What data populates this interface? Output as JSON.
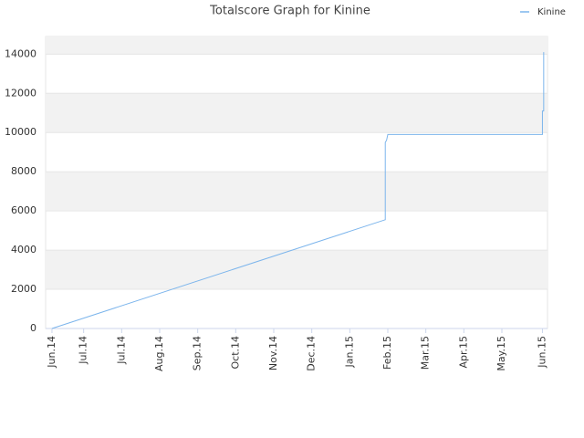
{
  "chart_data": {
    "type": "line",
    "title": "Totalscore Graph for Kinine",
    "x": [
      5,
      268,
      268,
      269,
      270,
      392,
      392,
      393,
      393
    ],
    "series": [
      {
        "name": "Kinine",
        "color": "#7cb5ec",
        "values": [
          0,
          5550,
          9500,
          9600,
          9900,
          9900,
          11100,
          11100,
          14100
        ]
      }
    ],
    "xlim": [
      0,
      396
    ],
    "xticks": [
      {
        "value": 5,
        "label": "Jun.14"
      },
      {
        "value": 30,
        "label": "Jul.14"
      },
      {
        "value": 60,
        "label": "Jul.14"
      },
      {
        "value": 90,
        "label": "Aug.14"
      },
      {
        "value": 120,
        "label": "Sep.14"
      },
      {
        "value": 150,
        "label": "Oct.14"
      },
      {
        "value": 180,
        "label": "Nov.14"
      },
      {
        "value": 210,
        "label": "Dec.14"
      },
      {
        "value": 240,
        "label": "Jan.15"
      },
      {
        "value": 270,
        "label": "Feb.15"
      },
      {
        "value": 300,
        "label": "Mar.15"
      },
      {
        "value": 330,
        "label": "Apr.15"
      },
      {
        "value": 360,
        "label": "May.15"
      },
      {
        "value": 392,
        "label": "Jun.15"
      }
    ],
    "ylim": [
      0,
      14900
    ],
    "yticks": [
      0,
      2000,
      4000,
      6000,
      8000,
      10000,
      12000,
      14000
    ],
    "grid": true,
    "bands": true,
    "legend": "top-right"
  }
}
